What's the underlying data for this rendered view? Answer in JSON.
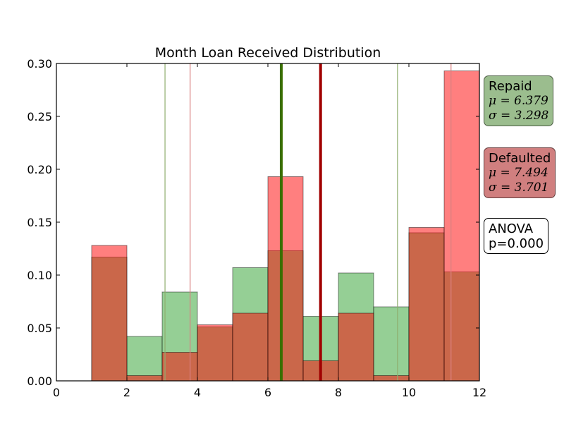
{
  "chart_data": {
    "type": "bar",
    "title": "Month Loan Received Distribution",
    "xlabel": "",
    "ylabel": "",
    "xlim": [
      0,
      12
    ],
    "ylim": [
      0,
      0.3
    ],
    "xticks": [
      "0",
      "2",
      "4",
      "6",
      "8",
      "10",
      "12"
    ],
    "yticks": [
      "0.00",
      "0.05",
      "0.10",
      "0.15",
      "0.20",
      "0.25",
      "0.30"
    ],
    "bin_edges": [
      1,
      2,
      3,
      4,
      5,
      6,
      7,
      8,
      9,
      10,
      11,
      12
    ],
    "series": [
      {
        "name": "Repaid",
        "color": "#2ca02c",
        "values": [
          0.117,
          0.042,
          0.084,
          0.051,
          0.107,
          0.123,
          0.061,
          0.102,
          0.07,
          0.14,
          0.103
        ],
        "mean": 6.379,
        "mean_line_color": "#3a6e00",
        "sd_line_color": "#8fae6e",
        "sd_lines": [
          3.081,
          9.677
        ]
      },
      {
        "name": "Defaulted",
        "color": "#ff0000",
        "values": [
          0.128,
          0.005,
          0.027,
          0.053,
          0.064,
          0.193,
          0.019,
          0.064,
          0.005,
          0.145,
          0.293
        ],
        "mean": 7.494,
        "mean_line_color": "#a00000",
        "sd_line_color": "#d98080",
        "sd_lines": [
          3.793,
          11.195
        ]
      }
    ],
    "overlap_color": "#c05a3c"
  },
  "stats": {
    "repaid": {
      "label": "Repaid",
      "mu": "μ = 6.379",
      "sigma": "σ = 3.298"
    },
    "defaulted": {
      "label": "Defaulted",
      "mu": "μ = 7.494",
      "sigma": "σ = 3.701"
    },
    "anova": {
      "label": "ANOVA",
      "p": "p=0.000"
    }
  }
}
